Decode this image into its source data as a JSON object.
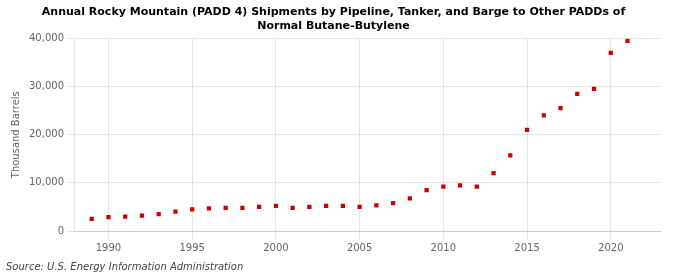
{
  "chart_data": {
    "type": "scatter",
    "title": [
      "Annual Rocky Mountain (PADD 4) Shipments by Pipeline, Tanker, and Barge to Other PADDs of",
      "Normal Butane-Butylene"
    ],
    "source": "Source: U.S. Energy Information Administration",
    "ylabel": "Thousand Barrels",
    "x": [
      1989,
      1990,
      1991,
      1992,
      1993,
      1994,
      1995,
      1996,
      1997,
      1998,
      1999,
      2000,
      2001,
      2002,
      2003,
      2004,
      2005,
      2006,
      2007,
      2008,
      2009,
      2010,
      2011,
      2012,
      2013,
      2014,
      2015,
      2016,
      2017,
      2018,
      2019,
      2020,
      2021
    ],
    "values": [
      2500,
      2900,
      3000,
      3200,
      3500,
      4000,
      4500,
      4700,
      4800,
      4800,
      5000,
      5200,
      4800,
      5000,
      5200,
      5200,
      5000,
      5300,
      5800,
      6800,
      8500,
      9200,
      9500,
      9200,
      12000,
      15700,
      21000,
      24000,
      25500,
      28500,
      29500,
      37000,
      39500
    ],
    "color": "#cc0000",
    "marker": "square",
    "xlim": [
      1988,
      2023
    ],
    "xticks": [
      1990,
      1995,
      2000,
      2005,
      2010,
      2015,
      2020
    ],
    "ylim": [
      0,
      40000
    ],
    "yticks": [
      0,
      {
        "value": 10000,
        "label": "10,000"
      },
      {
        "value": 20000,
        "label": "20,000"
      },
      {
        "value": 30000,
        "label": "30,000"
      },
      {
        "value": 40000,
        "label": "40,000"
      }
    ],
    "grid": true
  }
}
